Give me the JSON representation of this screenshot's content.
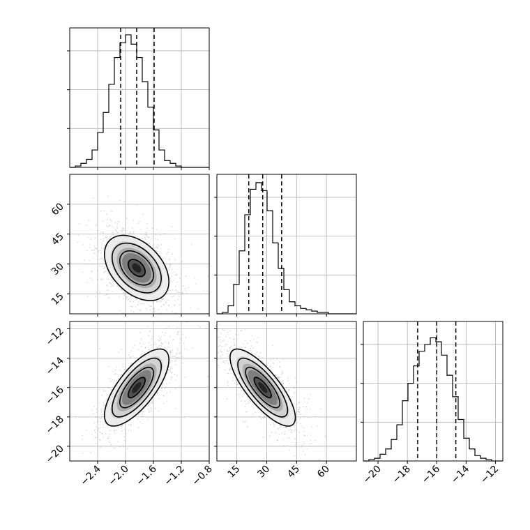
{
  "figure": {
    "type": "corner_plot",
    "grid": true,
    "quantiles_shown": [
      0.16,
      0.5,
      0.84
    ]
  },
  "colors": {
    "line": "#000000",
    "grid": "#b0b0b0",
    "scatter": "#9a9a9a",
    "density": [
      "#ececec",
      "#cfcfcf",
      "#a8a8a8",
      "#7a7a7a",
      "#4a4a4a",
      "#1e1e1e"
    ]
  },
  "chart_data": [
    {
      "type": "histogram",
      "panel": "p1-hist",
      "xlim": [
        -2.8,
        -0.8
      ],
      "ylim": [
        0,
        1
      ],
      "edges": [
        -2.8,
        -2.72,
        -2.64,
        -2.56,
        -2.48,
        -2.4,
        -2.32,
        -2.24,
        -2.16,
        -2.08,
        -2.0,
        -1.92,
        -1.84,
        -1.76,
        -1.68,
        -1.6,
        -1.52,
        -1.44,
        -1.36,
        -1.28,
        -1.2,
        -1.12,
        -1.04,
        -0.96,
        -0.88,
        -0.8
      ],
      "counts": [
        0.0,
        0.01,
        0.03,
        0.06,
        0.13,
        0.26,
        0.41,
        0.62,
        0.82,
        0.93,
        0.99,
        0.92,
        0.82,
        0.64,
        0.45,
        0.28,
        0.13,
        0.05,
        0.03,
        0.01,
        0.0,
        0.0,
        0.0,
        0.0,
        0.0
      ],
      "quantiles": [
        -2.07,
        -1.84,
        -1.59
      ],
      "xticks": [
        -2.4,
        -2.0,
        -1.6,
        -1.2,
        -0.8
      ],
      "xtick_labels": [
        "−2.4",
        "−2.0",
        "−1.6",
        "−1.2",
        "−0.8"
      ]
    },
    {
      "type": "histogram",
      "panel": "p2-hist",
      "xlim": [
        5,
        75
      ],
      "ylim": [
        0,
        1
      ],
      "edges": [
        5,
        7.8,
        10.6,
        13.4,
        16.2,
        19,
        21.8,
        24.6,
        27.4,
        30.2,
        33,
        35.8,
        38.6,
        41.4,
        44.2,
        47,
        49.8,
        52.6,
        55.4,
        58.2,
        61,
        63.8,
        66.6,
        69.4,
        72.2,
        75
      ],
      "counts": [
        0.0,
        0.01,
        0.06,
        0.22,
        0.47,
        0.74,
        0.93,
        0.98,
        0.92,
        0.77,
        0.53,
        0.34,
        0.18,
        0.09,
        0.06,
        0.04,
        0.03,
        0.02,
        0.01,
        0.01,
        0.0,
        0.0,
        0.0,
        0.0,
        0.0
      ],
      "quantiles": [
        21.0,
        28.0,
        37.5
      ],
      "xticks": [
        15,
        30,
        45,
        60
      ],
      "xtick_labels": [
        "15",
        "30",
        "45",
        "60"
      ]
    },
    {
      "type": "histogram",
      "panel": "p3-hist",
      "xlim": [
        -21,
        -11.5
      ],
      "ylim": [
        0,
        1
      ],
      "edges": [
        -21,
        -20.62,
        -20.24,
        -19.86,
        -19.48,
        -19.1,
        -18.72,
        -18.34,
        -17.96,
        -17.58,
        -17.2,
        -16.82,
        -16.44,
        -16.06,
        -15.68,
        -15.3,
        -14.92,
        -14.54,
        -14.16,
        -13.78,
        -13.4,
        -13.02,
        -12.64,
        -12.26,
        -11.88,
        -11.5
      ],
      "counts": [
        0.0,
        0.01,
        0.02,
        0.05,
        0.09,
        0.16,
        0.27,
        0.45,
        0.58,
        0.71,
        0.82,
        0.87,
        0.92,
        0.89,
        0.79,
        0.64,
        0.48,
        0.31,
        0.17,
        0.09,
        0.04,
        0.02,
        0.01,
        0.0,
        0.0
      ],
      "quantiles": [
        -17.3,
        -16.0,
        -14.7
      ],
      "xticks": [
        -20,
        -18,
        -16,
        -14,
        -12
      ],
      "xtick_labels": [
        "−20",
        "−18",
        "−16",
        "−14",
        "−12"
      ]
    },
    {
      "type": "scatter_density",
      "panel": "p12-joint",
      "x_param": 1,
      "y_param": 2,
      "xlim": [
        -2.8,
        -0.8
      ],
      "ylim": [
        5,
        75
      ],
      "center": [
        -1.84,
        28.0
      ],
      "sigma": [
        0.22,
        7.8
      ],
      "rho": -0.42,
      "point_count": 1400,
      "yticks": [
        15,
        30,
        45,
        60
      ],
      "ytick_labels": [
        "15",
        "30",
        "45",
        "60"
      ]
    },
    {
      "type": "scatter_density",
      "panel": "p13-joint",
      "x_param": 1,
      "y_param": 3,
      "xlim": [
        -2.8,
        -0.8
      ],
      "ylim": [
        -21,
        -11.5
      ],
      "center": [
        -1.84,
        -16.0
      ],
      "sigma": [
        0.22,
        1.25
      ],
      "rho": 0.72,
      "point_count": 1400,
      "xticks": [
        -2.4,
        -2.0,
        -1.6,
        -1.2,
        -0.8
      ],
      "xtick_labels": [
        "−2.4",
        "−2.0",
        "−1.6",
        "−1.2",
        "−0.8"
      ],
      "yticks": [
        -20,
        -18,
        -16,
        -14,
        -12
      ],
      "ytick_labels": [
        "−20",
        "−18",
        "−16",
        "−14",
        "−12"
      ]
    },
    {
      "type": "scatter_density",
      "panel": "p23-joint",
      "x_param": 2,
      "y_param": 3,
      "xlim": [
        5,
        75
      ],
      "ylim": [
        -21,
        -11.5
      ],
      "center": [
        28.0,
        -16.0
      ],
      "sigma": [
        7.8,
        1.25
      ],
      "rho": -0.78,
      "point_count": 1400,
      "xticks": [
        15,
        30,
        45,
        60
      ],
      "xtick_labels": [
        "15",
        "30",
        "45",
        "60"
      ]
    }
  ]
}
